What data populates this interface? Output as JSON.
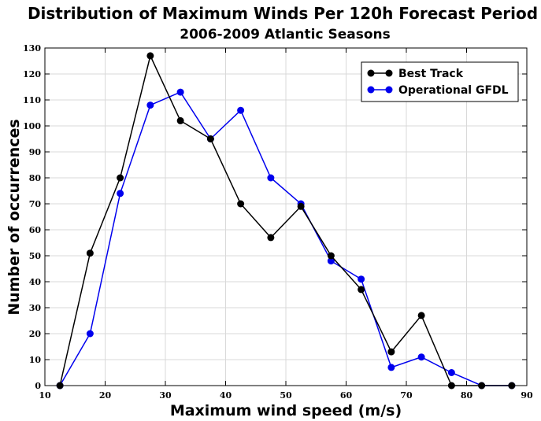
{
  "chart_data": {
    "type": "line",
    "title": "Distribution of Maximum Winds Per 120h Forecast Period",
    "subtitle": "2006-2009 Atlantic Seasons",
    "xlabel": "Maximum wind speed (m/s)",
    "ylabel": "Number of occurrences",
    "xlim": [
      10,
      90
    ],
    "ylim": [
      0,
      130
    ],
    "xticks": [
      10,
      20,
      30,
      40,
      50,
      60,
      70,
      80,
      90
    ],
    "yticks": [
      0,
      10,
      20,
      30,
      40,
      50,
      60,
      70,
      80,
      90,
      100,
      110,
      120,
      130
    ],
    "grid": true,
    "legend_position": "top-right",
    "x": [
      12.5,
      17.5,
      22.5,
      27.5,
      32.5,
      37.5,
      42.5,
      47.5,
      52.5,
      57.5,
      62.5,
      67.5,
      72.5,
      77.5,
      82.5,
      87.5
    ],
    "series": [
      {
        "name": "Best Track",
        "color": "#000000",
        "values": [
          0,
          51,
          80,
          127,
          102,
          95,
          70,
          57,
          69,
          50,
          37,
          13,
          27,
          0,
          0,
          0
        ]
      },
      {
        "name": "Operational GFDL",
        "color": "#0000ee",
        "values": [
          0,
          20,
          74,
          108,
          113,
          95,
          106,
          80,
          70,
          48,
          41,
          7,
          11,
          5,
          0,
          0
        ]
      }
    ]
  }
}
